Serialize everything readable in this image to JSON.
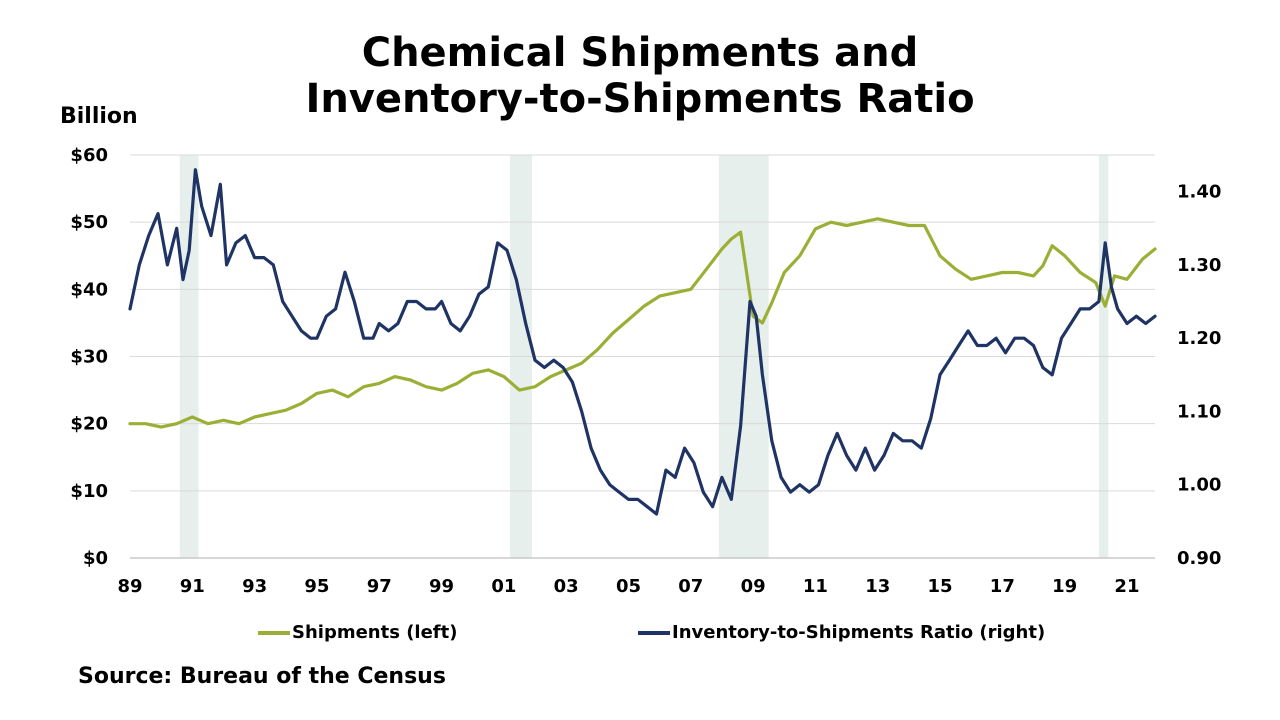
{
  "title_line1": "Chemical Shipments and",
  "title_line2": "Inventory-to-Shipments Ratio",
  "source": "Source: Bureau of the Census",
  "colors": {
    "shipments": "#9BAF36",
    "ratio": "#1F3464",
    "recession": "#E6EFEC",
    "grid": "#D9D9D9"
  },
  "chart_data": {
    "type": "line",
    "title": "Chemical Shipments and Inventory-to-Shipments Ratio",
    "ylabel_left": "Billion",
    "left_axis": {
      "ylim": [
        0,
        60
      ],
      "ticks": [
        0,
        10,
        20,
        30,
        40,
        50,
        60
      ],
      "tick_labels": [
        "$0",
        "$10",
        "$20",
        "$30",
        "$40",
        "$50",
        "$60"
      ]
    },
    "right_axis": {
      "ylim": [
        0.9,
        1.45
      ],
      "ticks": [
        0.9,
        1.0,
        1.1,
        1.2,
        1.3,
        1.4
      ],
      "tick_labels": [
        "0.90",
        "1.00",
        "1.10",
        "1.20",
        "1.30",
        "1.40"
      ]
    },
    "x_axis": {
      "xlim": [
        1989,
        2021.9
      ],
      "ticks": [
        1989,
        1991,
        1993,
        1995,
        1997,
        1999,
        2001,
        2003,
        2005,
        2007,
        2009,
        2011,
        2013,
        2015,
        2017,
        2019,
        2021
      ],
      "tick_labels": [
        "89",
        "91",
        "93",
        "95",
        "97",
        "99",
        "01",
        "03",
        "05",
        "07",
        "09",
        "11",
        "13",
        "15",
        "17",
        "19",
        "21"
      ]
    },
    "grid": true,
    "legend_position": "bottom",
    "recessions": [
      [
        1990.6,
        1991.2
      ],
      [
        2001.2,
        2001.9
      ],
      [
        2007.9,
        2009.5
      ],
      [
        2020.1,
        2020.4
      ]
    ],
    "series": [
      {
        "name": "Shipments (left)",
        "axis": "left",
        "x": [
          1989,
          1989.5,
          1990,
          1990.5,
          1991,
          1991.5,
          1992,
          1992.5,
          1993,
          1993.5,
          1994,
          1994.5,
          1995,
          1995.5,
          1996,
          1996.5,
          1997,
          1997.5,
          1998,
          1998.5,
          1999,
          1999.5,
          2000,
          2000.5,
          2001,
          2001.5,
          2002,
          2002.5,
          2003,
          2003.5,
          2004,
          2004.5,
          2005,
          2005.5,
          2006,
          2006.5,
          2007,
          2007.5,
          2008,
          2008.3,
          2008.6,
          2009,
          2009.3,
          2009.6,
          2010,
          2010.5,
          2011,
          2011.5,
          2012,
          2012.5,
          2013,
          2013.5,
          2014,
          2014.5,
          2015,
          2015.5,
          2016,
          2016.5,
          2017,
          2017.5,
          2018,
          2018.3,
          2018.6,
          2019,
          2019.5,
          2020,
          2020.3,
          2020.6,
          2021,
          2021.5,
          2021.9
        ],
        "y": [
          20,
          20,
          19.5,
          20,
          21,
          20,
          20.5,
          20,
          21,
          21.5,
          22,
          23,
          24.5,
          25,
          24,
          25.5,
          26,
          27,
          26.5,
          25.5,
          25,
          26,
          27.5,
          28,
          27,
          25,
          25.5,
          27,
          28,
          29,
          31,
          33.5,
          35.5,
          37.5,
          39,
          39.5,
          40,
          43,
          46,
          47.5,
          48.5,
          36,
          35,
          38,
          42.5,
          45,
          49,
          50,
          49.5,
          50,
          50.5,
          50,
          49.5,
          49.5,
          45,
          43,
          41.5,
          42,
          42.5,
          42.5,
          42,
          43.5,
          46.5,
          45,
          42.5,
          41,
          37.5,
          42,
          41.5,
          44.5,
          46
        ]
      },
      {
        "name": "Inventory-to-Shipments Ratio (right)",
        "axis": "right",
        "x": [
          1989,
          1989.3,
          1989.6,
          1989.9,
          1990.2,
          1990.5,
          1990.7,
          1990.9,
          1991.1,
          1991.3,
          1991.6,
          1991.9,
          1992.1,
          1992.4,
          1992.7,
          1993,
          1993.3,
          1993.6,
          1993.9,
          1994.2,
          1994.5,
          1994.8,
          1995,
          1995.3,
          1995.6,
          1995.9,
          1996.2,
          1996.5,
          1996.8,
          1997,
          1997.3,
          1997.6,
          1997.9,
          1998.2,
          1998.5,
          1998.8,
          1999,
          1999.3,
          1999.6,
          1999.9,
          2000.2,
          2000.5,
          2000.8,
          2001.1,
          2001.4,
          2001.7,
          2002,
          2002.3,
          2002.6,
          2002.9,
          2003.2,
          2003.5,
          2003.8,
          2004.1,
          2004.4,
          2004.7,
          2005,
          2005.3,
          2005.6,
          2005.9,
          2006.2,
          2006.5,
          2006.8,
          2007.1,
          2007.4,
          2007.7,
          2008,
          2008.3,
          2008.6,
          2008.9,
          2009.1,
          2009.3,
          2009.6,
          2009.9,
          2010.2,
          2010.5,
          2010.8,
          2011.1,
          2011.4,
          2011.7,
          2012,
          2012.3,
          2012.6,
          2012.9,
          2013.2,
          2013.5,
          2013.8,
          2014.1,
          2014.4,
          2014.7,
          2015,
          2015.3,
          2015.6,
          2015.9,
          2016.2,
          2016.5,
          2016.8,
          2017.1,
          2017.4,
          2017.7,
          2018,
          2018.3,
          2018.6,
          2018.9,
          2019.2,
          2019.5,
          2019.8,
          2020.1,
          2020.3,
          2020.5,
          2020.7,
          2021,
          2021.3,
          2021.6,
          2021.9
        ],
        "y": [
          1.24,
          1.3,
          1.34,
          1.37,
          1.3,
          1.35,
          1.28,
          1.32,
          1.43,
          1.38,
          1.34,
          1.41,
          1.3,
          1.33,
          1.34,
          1.31,
          1.31,
          1.3,
          1.25,
          1.23,
          1.21,
          1.2,
          1.2,
          1.23,
          1.24,
          1.29,
          1.25,
          1.2,
          1.2,
          1.22,
          1.21,
          1.22,
          1.25,
          1.25,
          1.24,
          1.24,
          1.25,
          1.22,
          1.21,
          1.23,
          1.26,
          1.27,
          1.33,
          1.32,
          1.28,
          1.22,
          1.17,
          1.16,
          1.17,
          1.16,
          1.14,
          1.1,
          1.05,
          1.02,
          1.0,
          0.99,
          0.98,
          0.98,
          0.97,
          0.96,
          1.02,
          1.01,
          1.05,
          1.03,
          0.99,
          0.97,
          1.01,
          0.98,
          1.08,
          1.25,
          1.23,
          1.15,
          1.06,
          1.01,
          0.99,
          1.0,
          0.99,
          1.0,
          1.04,
          1.07,
          1.04,
          1.02,
          1.05,
          1.02,
          1.04,
          1.07,
          1.06,
          1.06,
          1.05,
          1.09,
          1.15,
          1.17,
          1.19,
          1.21,
          1.19,
          1.19,
          1.2,
          1.18,
          1.2,
          1.2,
          1.19,
          1.16,
          1.15,
          1.2,
          1.22,
          1.24,
          1.24,
          1.25,
          1.33,
          1.27,
          1.24,
          1.22,
          1.23,
          1.22,
          1.23
        ]
      }
    ]
  }
}
